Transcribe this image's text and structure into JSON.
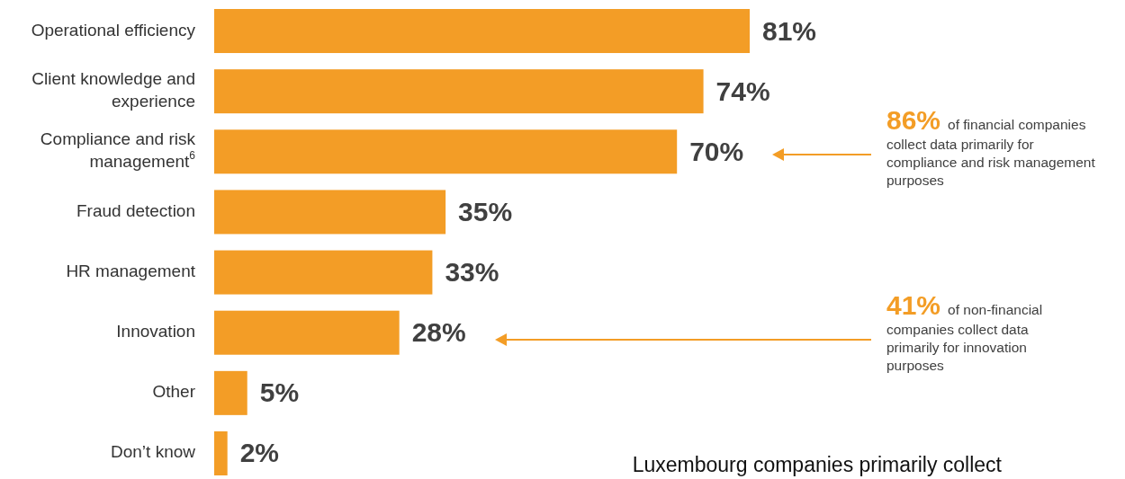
{
  "chart_data": {
    "type": "bar",
    "orientation": "horizontal",
    "title": "Luxembourg companies primarily collect",
    "categories": [
      "Operational efficiency",
      "Client knowledge and experience",
      "Compliance and risk management$^{6}$",
      "Fraud detection",
      "HR management",
      "Innovation",
      "Other",
      "Don’t know"
    ],
    "values": [
      81,
      74,
      70,
      35,
      33,
      28,
      5,
      2
    ],
    "value_labels": [
      "81%",
      "74%",
      "70%",
      "35%",
      "33%",
      "28%",
      "5%",
      "2%"
    ],
    "color": "#f39d26",
    "annotations": [
      "86% of financial companies collect data primarily for compliance and risk management purposes",
      "41% of non-financial companies collect data primarily for innovation purposes"
    ]
  }
}
